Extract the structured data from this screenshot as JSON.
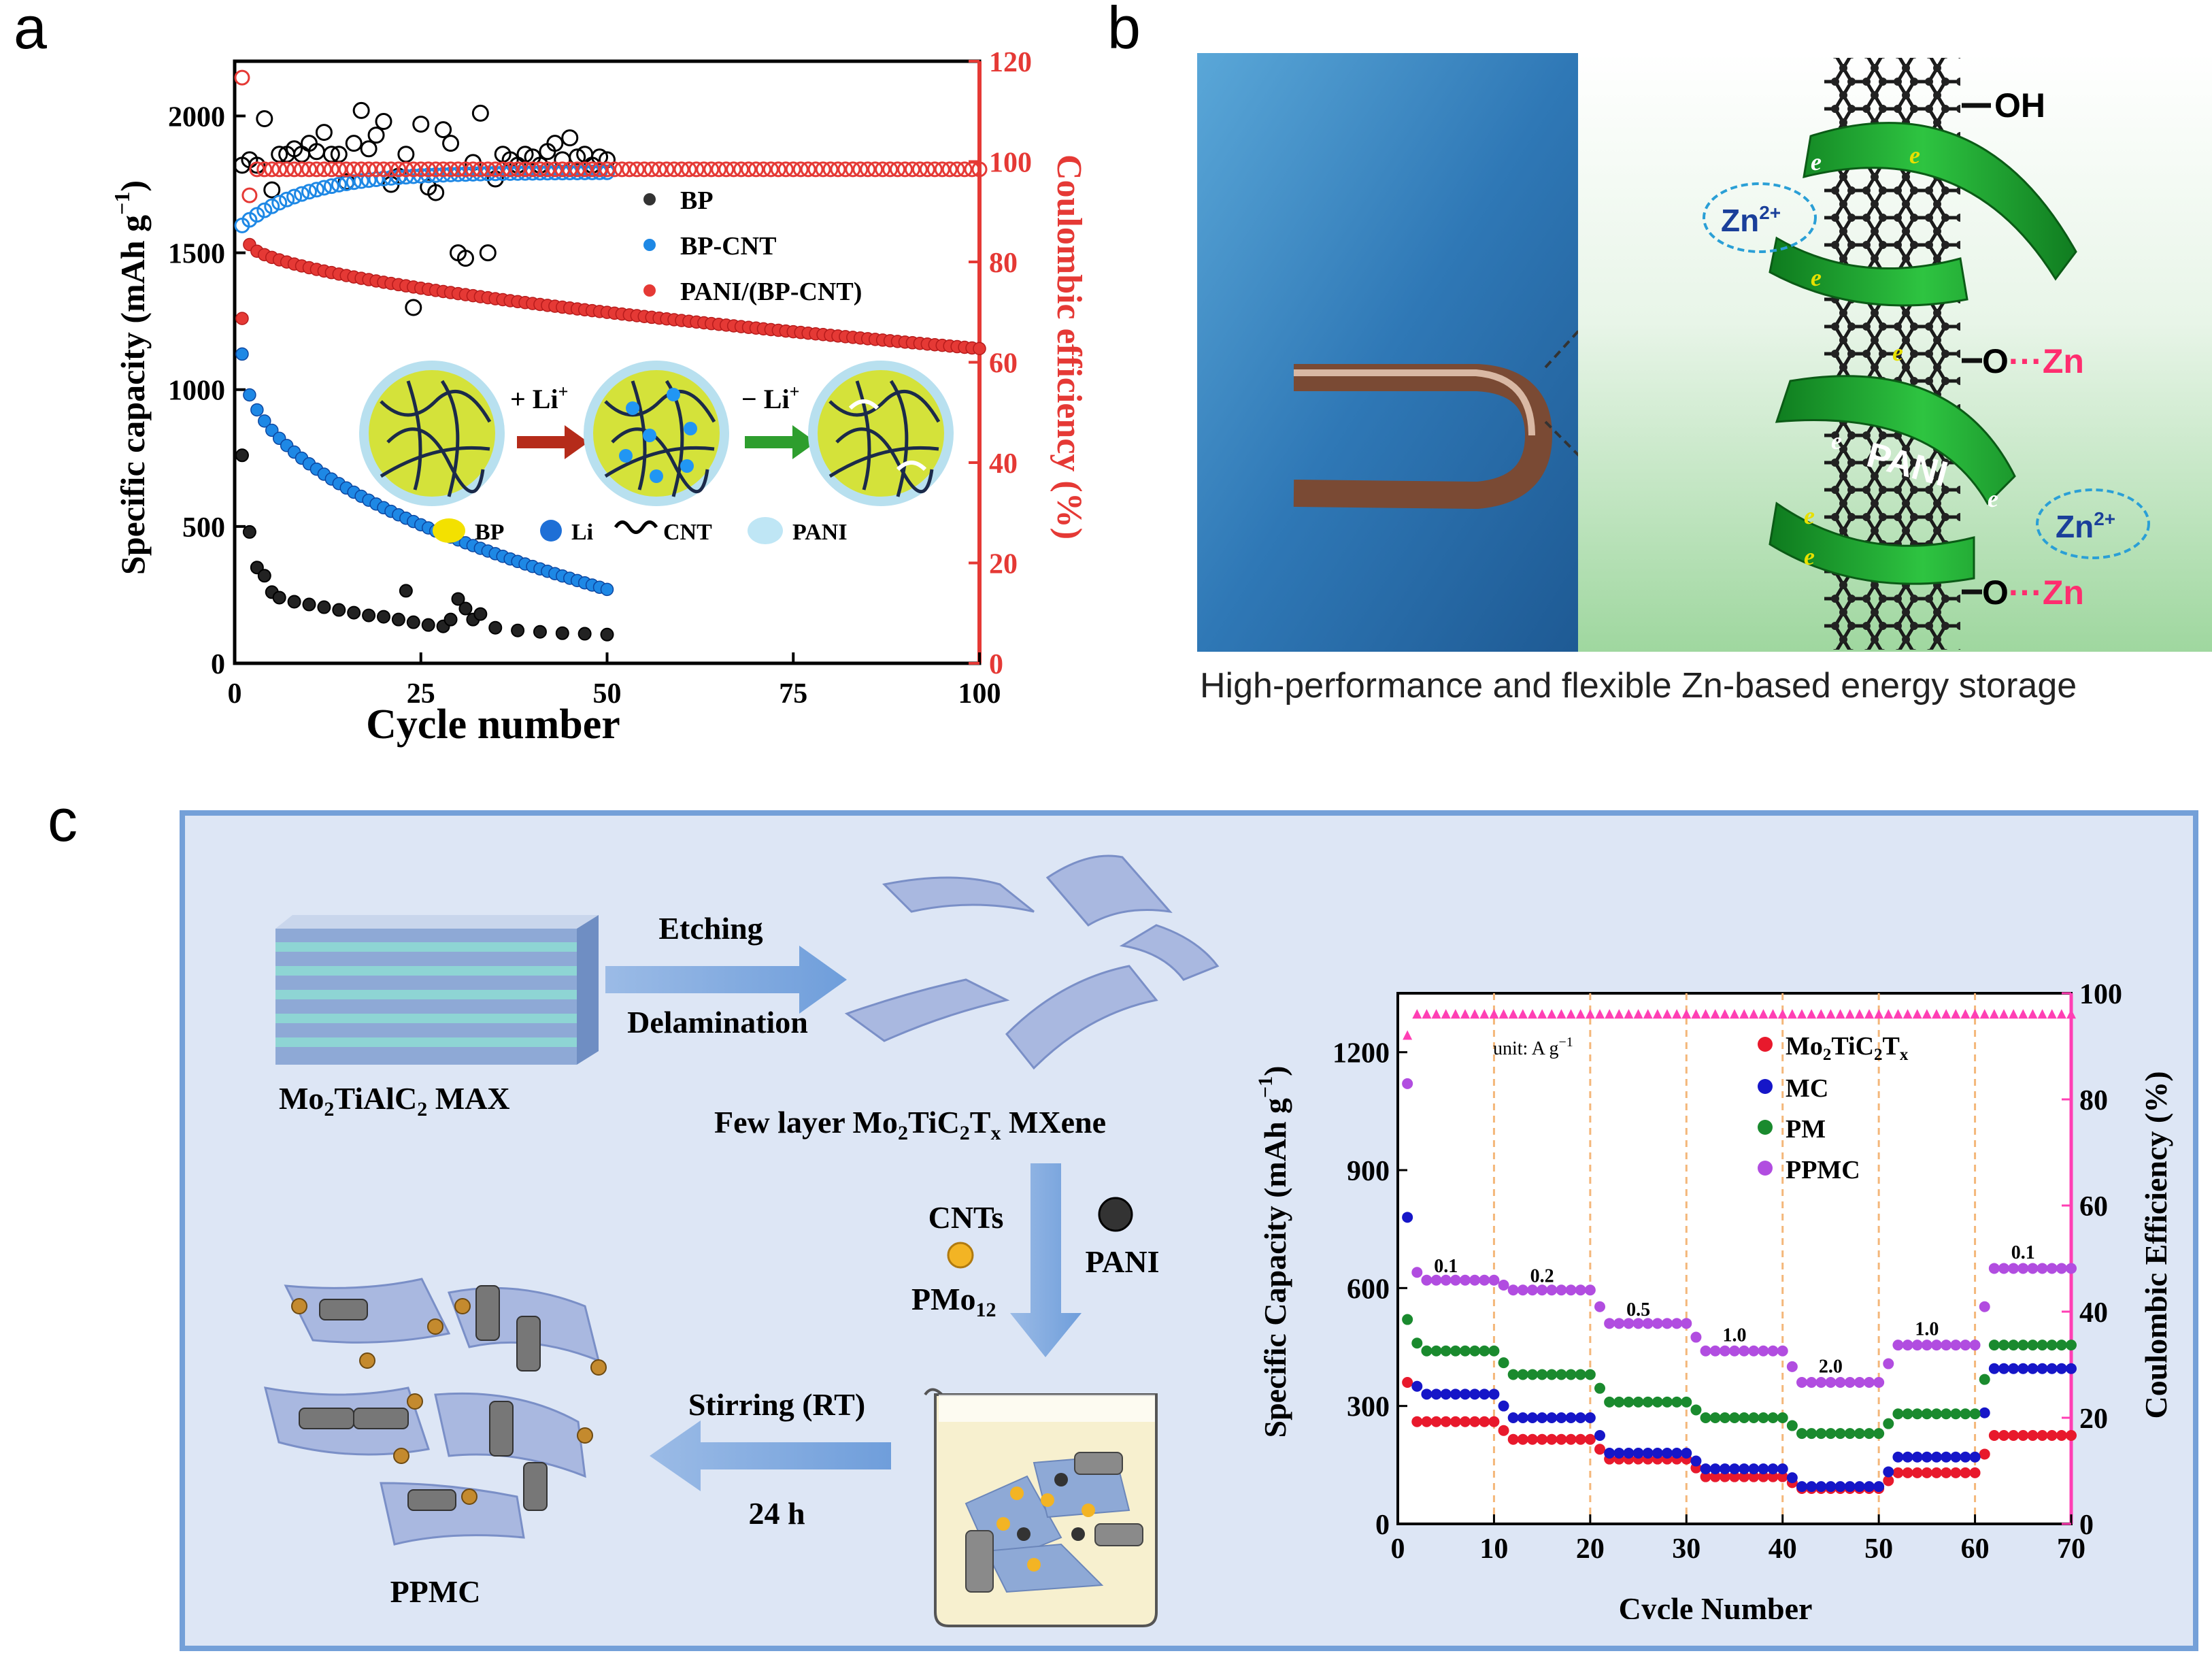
{
  "panels": {
    "a": {
      "letter": "a",
      "legend_inset": {
        "bp": "BP",
        "li": "Li",
        "cnt": "CNT",
        "pani": "PANI",
        "plus_li": "+ Li",
        "minus_li": "− Li",
        "sup": "+"
      }
    },
    "b": {
      "letter": "b",
      "caption": "High-performance and flexible Zn-based energy storage",
      "labels": {
        "oh": "OH",
        "ozn1_o": "O",
        "ozn1_zn": "Zn",
        "ozn2_o": "O",
        "ozn2_zn": "Zn",
        "dots": "···",
        "zn_ion": "Zn",
        "zn_sup": "2+",
        "pani": "PANI",
        "e": "e"
      }
    },
    "c": {
      "letter": "c",
      "max_label_pre": "Mo",
      "max_label_sub1": "2",
      "max_label_mid": "TiAlC",
      "max_label_sub2": "2",
      "max_label_post": " MAX",
      "etching": "Etching",
      "delamination": "Delamination",
      "mxene_pre": "Few layer Mo",
      "mxene_sub1": "2",
      "mxene_mid": "TiC",
      "mxene_sub2": "2",
      "mxene_t": "T",
      "mxene_sub3": "x",
      "mxene_post": " MXene",
      "cnts": "CNTs",
      "pani": "PANI",
      "pmo_pre": "PMo",
      "pmo_sub": "12",
      "stirring": "Stirring (RT)",
      "time": "24 h",
      "ppmc": "PPMC"
    }
  },
  "chart_data": [
    {
      "type": "scatter",
      "panel": "a",
      "xlabel": "Cycle number",
      "ylabel_left": "Specific capacity (mAh g",
      "ylabel_left_sup": "−1",
      "ylabel_left_close": ")",
      "ylabel_right": "Coulombic efficiency (%)",
      "xlim": [
        0,
        100
      ],
      "ylim_left": [
        0,
        2200
      ],
      "ylim_right": [
        0,
        120
      ],
      "xticks": [
        "0",
        "25",
        "50",
        "75",
        "100"
      ],
      "yticks_left": [
        "0",
        "500",
        "1000",
        "1500",
        "2000"
      ],
      "yticks_right": [
        "0",
        "20",
        "40",
        "60",
        "80",
        "100",
        "120"
      ],
      "legend": [
        "BP",
        "BP-CNT",
        "PANI/(BP-CNT)"
      ],
      "series": [
        {
          "name": "BP",
          "axis": "left",
          "color": "#000000",
          "capacity_points": [
            [
              1,
              760
            ],
            [
              2,
              480
            ],
            [
              3,
              350
            ],
            [
              4,
              320
            ],
            [
              5,
              260
            ],
            [
              6,
              240
            ],
            [
              8,
              225
            ],
            [
              10,
              215
            ],
            [
              12,
              205
            ],
            [
              14,
              195
            ],
            [
              16,
              185
            ],
            [
              18,
              175
            ],
            [
              20,
              170
            ],
            [
              22,
              160
            ],
            [
              23,
              265
            ],
            [
              24,
              150
            ],
            [
              26,
              140
            ],
            [
              28,
              135
            ],
            [
              29,
              160
            ],
            [
              30,
              235
            ],
            [
              31,
              200
            ],
            [
              32,
              160
            ],
            [
              33,
              180
            ],
            [
              35,
              130
            ],
            [
              38,
              120
            ],
            [
              41,
              115
            ],
            [
              44,
              110
            ],
            [
              47,
              108
            ],
            [
              50,
              105
            ]
          ],
          "efficiency_points": [
            [
              1,
              1820
            ],
            [
              2,
              1840
            ],
            [
              3,
              1820
            ],
            [
              4,
              1990
            ],
            [
              5,
              1730
            ],
            [
              6,
              1860
            ],
            [
              7,
              1860
            ],
            [
              8,
              1880
            ],
            [
              9,
              1860
            ],
            [
              10,
              1900
            ],
            [
              11,
              1870
            ],
            [
              12,
              1940
            ],
            [
              13,
              1860
            ],
            [
              14,
              1860
            ],
            [
              15,
              1760
            ],
            [
              16,
              1900
            ],
            [
              17,
              2020
            ],
            [
              18,
              1880
            ],
            [
              19,
              1930
            ],
            [
              20,
              1980
            ],
            [
              21,
              1750
            ],
            [
              22,
              1780
            ],
            [
              23,
              1860
            ],
            [
              24,
              1300
            ],
            [
              25,
              1970
            ],
            [
              26,
              1740
            ],
            [
              27,
              1720
            ],
            [
              28,
              1950
            ],
            [
              29,
              1900
            ],
            [
              30,
              1500
            ],
            [
              31,
              1480
            ],
            [
              32,
              1830
            ],
            [
              33,
              2010
            ],
            [
              34,
              1500
            ],
            [
              35,
              1770
            ],
            [
              36,
              1860
            ],
            [
              37,
              1840
            ],
            [
              38,
              1820
            ],
            [
              39,
              1860
            ],
            [
              40,
              1850
            ],
            [
              41,
              1820
            ],
            [
              42,
              1870
            ],
            [
              43,
              1900
            ],
            [
              44,
              1840
            ],
            [
              45,
              1920
            ],
            [
              46,
              1850
            ],
            [
              47,
              1860
            ],
            [
              48,
              1820
            ],
            [
              49,
              1850
            ],
            [
              50,
              1840
            ]
          ]
        },
        {
          "name": "BP-CNT",
          "axis": "left",
          "color": "#1e88e5",
          "capacity_start": 1130,
          "capacity_end": 270,
          "efficiency_start": 1600,
          "efficiency_end": 1795
        },
        {
          "name": "PANI/(BP-CNT)",
          "axis": "left",
          "color": "#e53935",
          "capacity_start": 1530,
          "capacity_end": 1150,
          "efficiency_start": 1780,
          "efficiency_end": 1805
        }
      ]
    },
    {
      "type": "scatter",
      "panel": "c",
      "xlabel": "Cycle Number",
      "ylabel_left": "Specific Capacity (mAh g",
      "ylabel_left_sup": "−1",
      "ylabel_left_close": ")",
      "ylabel_right": "Coulombic Efficiency (%)",
      "xlim": [
        0,
        70
      ],
      "ylim_left": [
        0,
        1350
      ],
      "ylim_right": [
        0,
        100
      ],
      "xticks": [
        "0",
        "10",
        "20",
        "30",
        "40",
        "50",
        "60",
        "70"
      ],
      "yticks_left": [
        "0",
        "300",
        "600",
        "900",
        "1200"
      ],
      "yticks_right": [
        "0",
        "20",
        "40",
        "60",
        "80",
        "100"
      ],
      "unit_note": "unit: A g",
      "unit_sup": "−1",
      "rates": [
        {
          "x": 5,
          "label": "0.1"
        },
        {
          "x": 15,
          "label": "0.2"
        },
        {
          "x": 25,
          "label": "0.5"
        },
        {
          "x": 35,
          "label": "1.0"
        },
        {
          "x": 45,
          "label": "2.0"
        },
        {
          "x": 55,
          "label": "1.0"
        },
        {
          "x": 65,
          "label": "0.1"
        }
      ],
      "rate_boundaries": [
        10,
        20,
        30,
        40,
        50,
        60
      ],
      "legend": [
        {
          "pre": "Mo",
          "sub1": "2",
          "mid": "TiC",
          "sub2": "2",
          "t": "T",
          "sub3": "x"
        },
        {
          "pre": "MC"
        },
        {
          "pre": "PM"
        },
        {
          "pre": "PPMC"
        }
      ],
      "series": [
        {
          "name": "Mo2TiC2Tx",
          "color": "#e8192c",
          "first": 360,
          "steps": [
            260,
            215,
            165,
            120,
            90,
            130,
            225
          ]
        },
        {
          "name": "MC",
          "color": "#1616c8",
          "first": 780,
          "steps": [
            330,
            270,
            180,
            140,
            95,
            170,
            395
          ]
        },
        {
          "name": "PM",
          "color": "#1a8a2e",
          "first": 520,
          "steps": [
            440,
            380,
            310,
            270,
            230,
            280,
            455
          ]
        },
        {
          "name": "PPMC",
          "color": "#b14de0",
          "first": 1120,
          "steps": [
            620,
            595,
            510,
            440,
            360,
            455,
            650
          ]
        }
      ],
      "efficiency": {
        "name": "CE",
        "color": "#ff3fb4",
        "start": 92,
        "value": 96
      }
    }
  ]
}
